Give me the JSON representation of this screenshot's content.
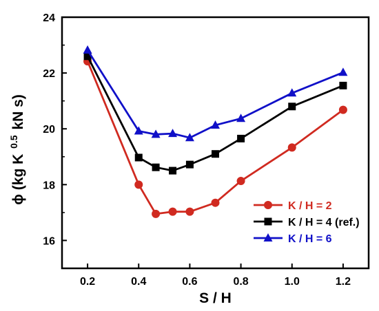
{
  "chart_data": {
    "type": "line",
    "xlabel": "S / H",
    "ylabel": "ϕ (kg K",
    "ylabel_sup": "0.5",
    "ylabel_tail": "kN s)",
    "xlim": [
      0.1,
      1.3
    ],
    "ylim": [
      15,
      24
    ],
    "xticks": [
      0.2,
      0.4,
      0.6,
      0.8,
      1.0,
      1.2
    ],
    "xtick_labels": [
      "0.2",
      "0.4",
      "0.6",
      "0.8",
      "1.0",
      "1.2"
    ],
    "yticks": [
      16,
      18,
      20,
      22,
      24
    ],
    "ytick_labels": [
      "16",
      "18",
      "20",
      "22",
      "24"
    ],
    "legend_position": "bottom-right",
    "grid": false,
    "x": [
      0.2,
      0.4,
      0.467,
      0.533,
      0.6,
      0.7,
      0.8,
      1.0,
      1.2
    ],
    "series": [
      {
        "name": "K / H = 2",
        "color": "#d02a20",
        "marker": "circle",
        "values": [
          22.42,
          18.0,
          16.95,
          17.03,
          17.03,
          17.35,
          18.13,
          19.33,
          20.68
        ]
      },
      {
        "name": "K / H = 4 (ref.)",
        "color": "#000000",
        "marker": "square",
        "values": [
          22.6,
          18.97,
          18.62,
          18.5,
          18.72,
          19.1,
          19.65,
          20.8,
          21.55
        ]
      },
      {
        "name": "K / H = 6",
        "color": "#1010c8",
        "marker": "triangle",
        "values": [
          22.82,
          19.92,
          19.8,
          19.83,
          19.68,
          20.13,
          20.37,
          21.28,
          22.02
        ]
      }
    ]
  }
}
